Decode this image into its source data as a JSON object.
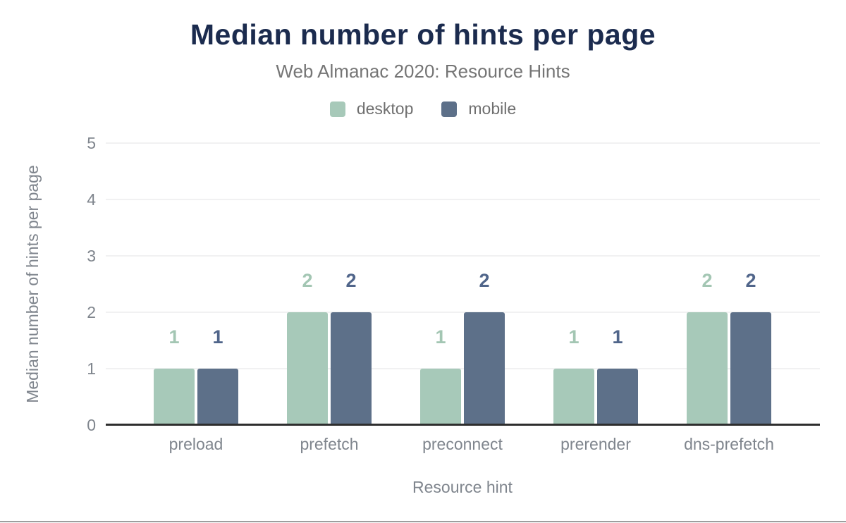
{
  "header": {
    "title": "Median number of hints per page",
    "subtitle": "Web Almanac 2020: Resource Hints"
  },
  "chart_data": {
    "type": "bar",
    "title": "Median number of hints per page",
    "subtitle": "Web Almanac 2020: Resource Hints",
    "categories": [
      "preload",
      "prefetch",
      "preconnect",
      "prerender",
      "dns-prefetch"
    ],
    "series": [
      {
        "name": "desktop",
        "values": [
          1,
          2,
          1,
          1,
          2
        ],
        "color": "#a7c9b9",
        "label_color": "#a3c6b3"
      },
      {
        "name": "mobile",
        "values": [
          1,
          2,
          2,
          1,
          2
        ],
        "color": "#5d7089",
        "label_color": "#50658a"
      }
    ],
    "xlabel": "Resource hint",
    "ylabel": "Median number of hints per page",
    "ylim": [
      0,
      5
    ],
    "yticks": [
      0,
      1,
      2,
      3,
      4,
      5
    ],
    "grid": true,
    "legend_position": "top",
    "data_labels": true
  },
  "colors": {
    "title": "#1b2b4e",
    "subtitle": "#757575",
    "axis_text": "#7f858d",
    "legend_text": "#6f6f6f",
    "gridline": "#f1f1f2",
    "baseline": "#2e2e2e",
    "page_bottom_border": "#9e9e9e",
    "background": "#ffffff"
  }
}
